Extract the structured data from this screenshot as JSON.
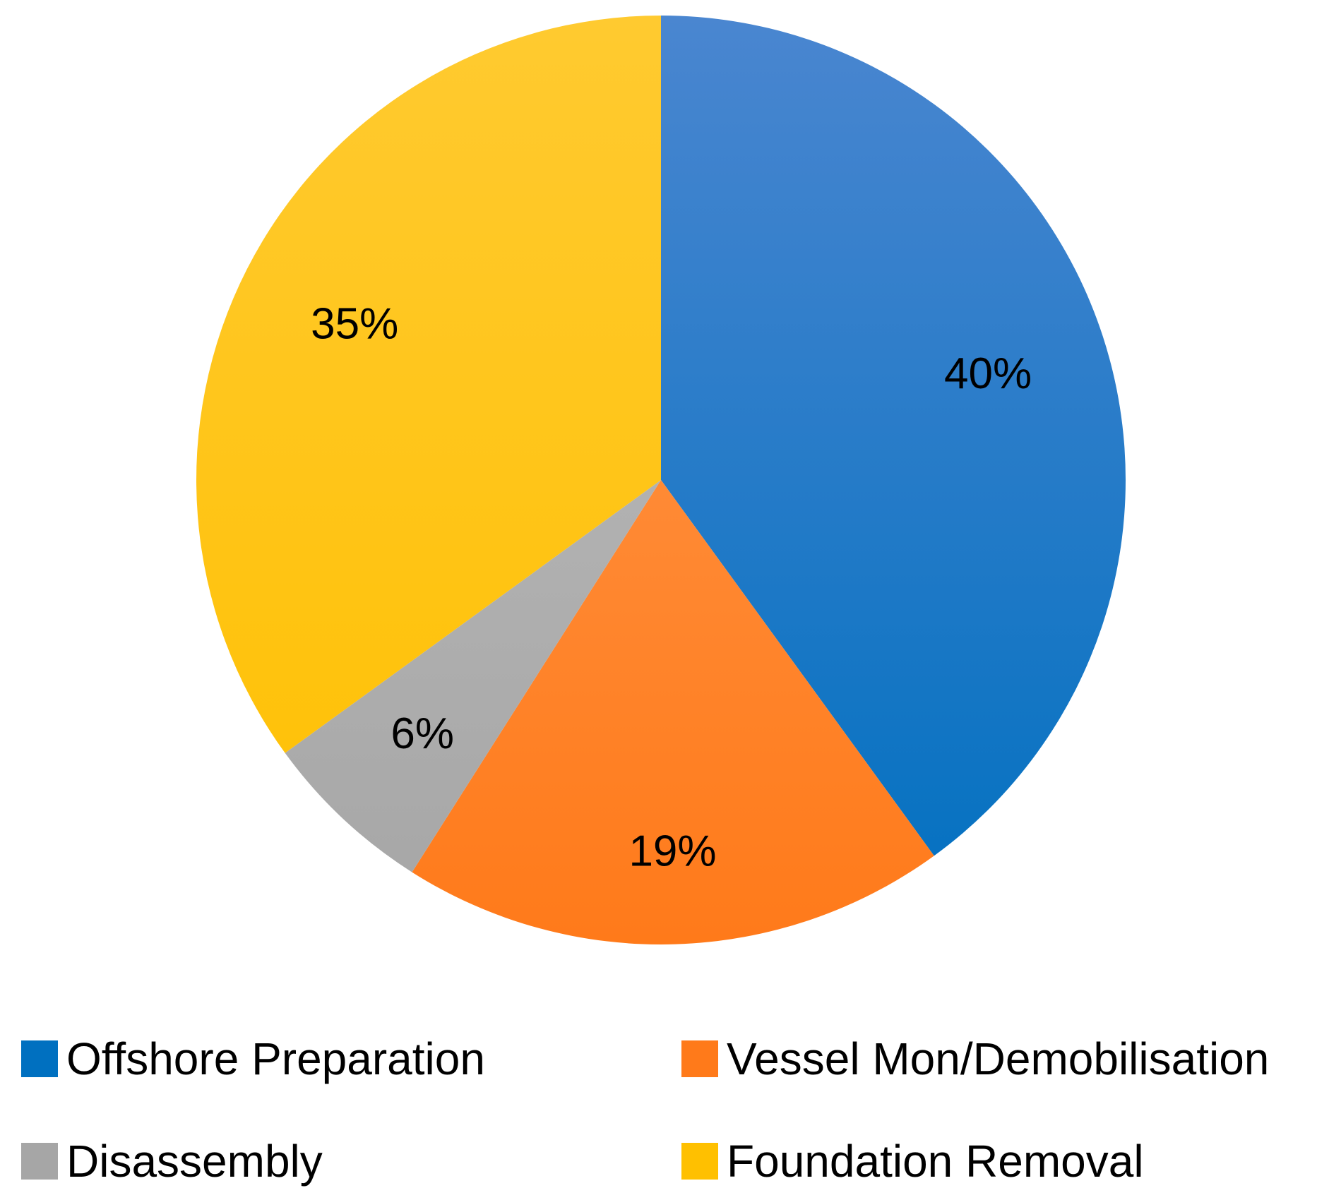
{
  "chart_data": {
    "type": "pie",
    "categories": [
      "Offshore Preparation",
      "Vessel Mon/Demobilisation",
      "Disassembly",
      "Foundation Removal"
    ],
    "values": [
      40,
      19,
      6,
      35
    ],
    "data_labels": [
      "40%",
      "19%",
      "6%",
      "35%"
    ],
    "colors": [
      "#0070C0",
      "#FF7A1A",
      "#A6A6A6",
      "#FFC000"
    ],
    "gradient_top_colors": [
      "#4A86D0",
      "#FF9A50",
      "#BDBDBD",
      "#FFCA30"
    ],
    "start_angle": "12 o'clock",
    "direction": "clockwise",
    "legend_position": "bottom",
    "title": "",
    "xlabel": "",
    "ylabel": ""
  }
}
